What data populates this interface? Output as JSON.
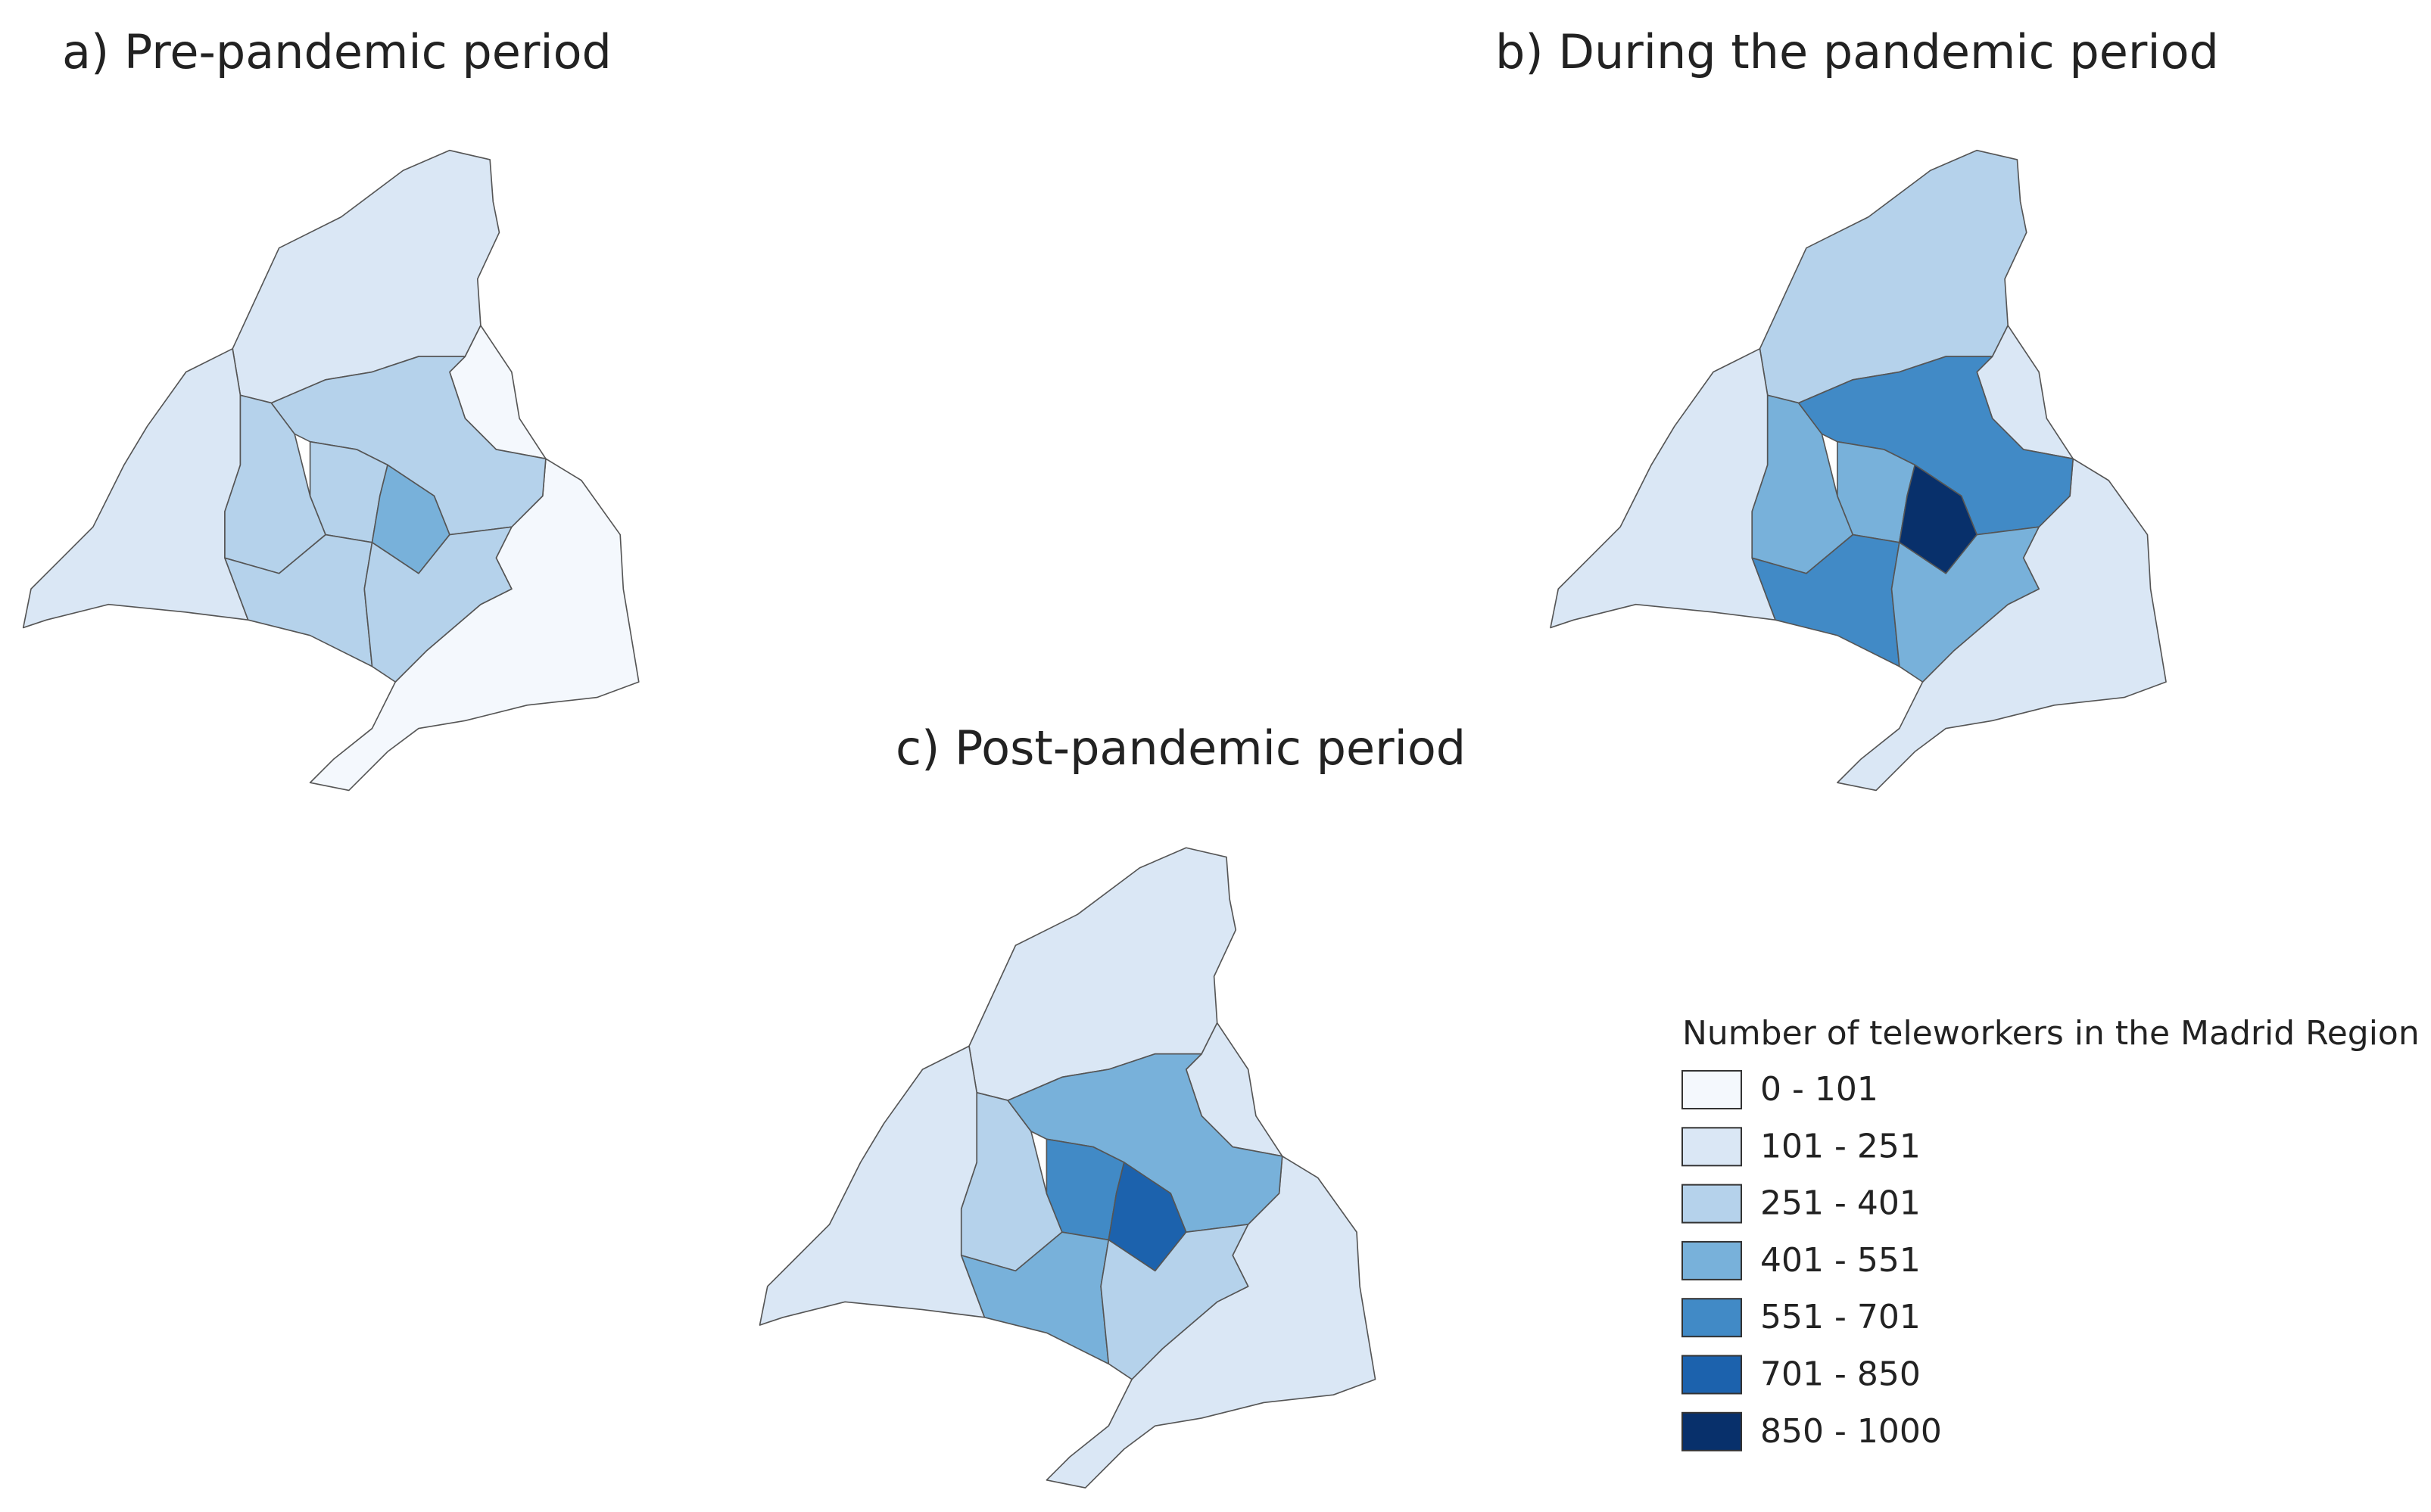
{
  "panels": [
    {
      "title": "a) Pre-pandemic period"
    },
    {
      "title": "b) During the pandemic period"
    },
    {
      "title": "c) Post-pandemic period"
    }
  ],
  "legend": {
    "title": "Number of teleworkers in the Madrid Region",
    "items": [
      {
        "label": "0 - 101",
        "color": "#f4f8fd"
      },
      {
        "label": "101 - 251",
        "color": "#dae7f5"
      },
      {
        "label": "251 - 401",
        "color": "#b5d2eb"
      },
      {
        "label": "401 - 551",
        "color": "#78b1da"
      },
      {
        "label": "551 - 701",
        "color": "#418ac6"
      },
      {
        "label": "701 - 850",
        "color": "#1c62ad"
      },
      {
        "label": "850 - 1000",
        "color": "#08306b"
      }
    ]
  }
}
